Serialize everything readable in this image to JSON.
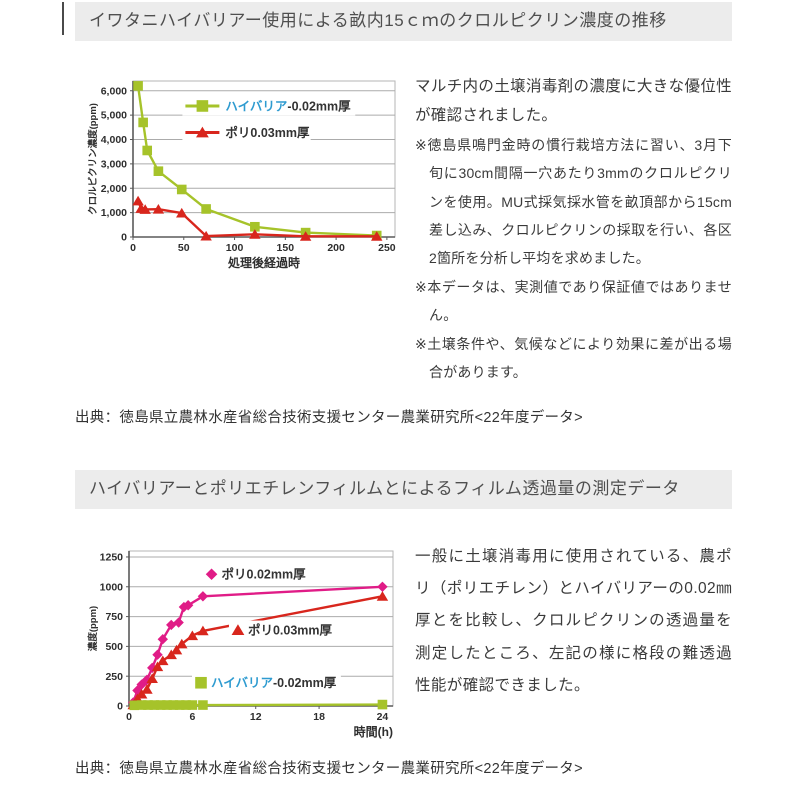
{
  "colors": {
    "green_series": "#a6c32a",
    "red_series": "#d8261d",
    "pink_series": "#e01c87",
    "brand_blue": "#2e9bd0",
    "header_bg": "#ececec",
    "header_text": "#4f4f4f",
    "grid": "#aaaaaa",
    "axis": "#666666"
  },
  "section1": {
    "header": "イワタニハイバリアー使用による畝内15ｃｍのクロルピクリン濃度の推移",
    "lead": "マルチ内の土壌消毒剤の濃度に大きな優位性が確認されました。",
    "notes": [
      "※徳島県鳴門金時の慣行栽培方法に習い、3月下旬に30cm間隔一穴あたり3mmのクロルピクリンを使用。MU式採気採水管を畝頂部から15cm差し込み、クロルピクリンの採取を行い、各区2箇所を分析し平均を求めました。",
      "※本データは、実測値であり保証値ではありません。",
      "※土壌条件や、気候などにより効果に差が出る場合があります。"
    ],
    "source": "出典：徳島県立農林水産省総合技術支援センター農業研究所<22年度データ>"
  },
  "section2": {
    "header": "ハイバリアーとポリエチレンフィルムとによるフィルム透過量の測定データ",
    "lead": "一般に土壌消毒用に使用されている、農ポリ（ポリエチレン）とハイバリアーの0.02㎜厚とを比較し、クロルピクリンの透過量を測定したところ、左記の様に格段の難透過性能が確認できました。",
    "source": "出典：徳島県立農林水産省総合技術支援センター農業研究所<22年度データ>"
  },
  "chart_data": [
    {
      "type": "line",
      "title": "イワタニハイバリアー使用による畝内15cmのクロルピクリン濃度の推移",
      "xlabel": "処理後経過時",
      "ylabel": "クロルピクリン濃度(ppm)",
      "xlim": [
        0,
        258
      ],
      "ylim": [
        0,
        6400
      ],
      "x_ticks": [
        0,
        50,
        100,
        150,
        200,
        250
      ],
      "y_ticks": [
        0,
        1000,
        2000,
        3000,
        4000,
        5000,
        6000
      ],
      "comma_ticks": true,
      "xlabel_pos": "center",
      "grid": "horizontal",
      "legend_position": "inside-top",
      "margins": {
        "l": 48,
        "r": 12,
        "t": 8,
        "b": 36
      },
      "series": [
        {
          "name": "ハイバリアー0.02mm厚",
          "marker": "square",
          "color": "#a6c32a",
          "x": [
            5,
            10,
            14,
            25,
            48,
            72,
            120,
            170,
            240
          ],
          "y": [
            6200,
            4700,
            3550,
            2700,
            1950,
            1150,
            420,
            180,
            60
          ]
        },
        {
          "name": "ポリ0.03mm厚",
          "marker": "triangle",
          "color": "#d8261d",
          "x": [
            5,
            8,
            12,
            25,
            48,
            72,
            120,
            170,
            240
          ],
          "y": [
            1480,
            1170,
            1130,
            1140,
            980,
            40,
            110,
            30,
            30
          ]
        }
      ],
      "legend": {
        "style": "box",
        "items": [
          {
            "series": 0,
            "pos": [
              0.2,
              0.16
            ],
            "parts": [
              {
                "text": "ハイバリア",
                "color": "#2e9bd0"
              },
              {
                "text": "-0.02mm厚",
                "color": "#333333"
              }
            ]
          },
          {
            "series": 1,
            "pos": [
              0.2,
              0.33
            ],
            "parts": [
              {
                "text": "ポリ0.03mm厚",
                "color": "#333333"
              }
            ]
          }
        ]
      }
    },
    {
      "type": "line",
      "title": "ハイバリアーとポリエチレンフィルムとによるフィルム透過量の測定データ",
      "xlabel": "時間(h)",
      "ylabel": "濃度(ppm)",
      "xlim": [
        0,
        25
      ],
      "ylim": [
        0,
        1300
      ],
      "x_ticks": [
        0,
        6,
        12,
        18,
        24
      ],
      "y_ticks": [
        0,
        250,
        500,
        750,
        1000,
        1250
      ],
      "comma_ticks": false,
      "xlabel_pos": "right",
      "grid": "horizontal",
      "legend_position": "inside",
      "margins": {
        "l": 44,
        "r": 14,
        "t": 10,
        "b": 40
      },
      "series": [
        {
          "name": "ポリ0.02mm厚",
          "marker": "diamond",
          "color": "#e01c87",
          "x": [
            0.4,
            0.8,
            1.2,
            1.7,
            2.2,
            2.7,
            3.2,
            4,
            4.7,
            5.2,
            5.6,
            7,
            24
          ],
          "y": [
            30,
            130,
            180,
            220,
            320,
            430,
            560,
            680,
            700,
            830,
            845,
            920,
            1000
          ]
        },
        {
          "name": "ポリ0.03mm厚",
          "marker": "triangle",
          "color": "#d8261d",
          "x": [
            0.4,
            0.8,
            1.2,
            1.7,
            2.2,
            2.7,
            3.2,
            4,
            4.5,
            5,
            6,
            7,
            24
          ],
          "y": [
            10,
            60,
            100,
            140,
            230,
            330,
            380,
            430,
            470,
            520,
            590,
            630,
            920
          ]
        },
        {
          "name": "ハイバリアー0.02mm厚",
          "marker": "square",
          "color": "#a6c32a",
          "x": [
            0.5,
            1.2,
            1.8,
            2.4,
            3,
            3.6,
            4.2,
            4.8,
            5.4,
            6,
            7,
            24
          ],
          "y": [
            6,
            8,
            8,
            8,
            8,
            8,
            8,
            8,
            8,
            8,
            8,
            12
          ]
        }
      ],
      "legend": {
        "style": "inline",
        "items": [
          {
            "series": 0,
            "pos": [
              0.29,
              0.15
            ],
            "parts": [
              {
                "text": "ポリ0.02mm厚",
                "color": "#333333"
              }
            ]
          },
          {
            "series": 1,
            "pos": [
              0.39,
              0.51
            ],
            "parts": [
              {
                "text": "ポリ0.03mm厚",
                "color": "#333333"
              }
            ]
          },
          {
            "series": 2,
            "pos": [
              0.25,
              0.85
            ],
            "parts": [
              {
                "text": "ハイバリア",
                "color": "#2e9bd0"
              },
              {
                "text": "-0.02mm厚",
                "color": "#333333"
              }
            ]
          }
        ]
      }
    }
  ]
}
